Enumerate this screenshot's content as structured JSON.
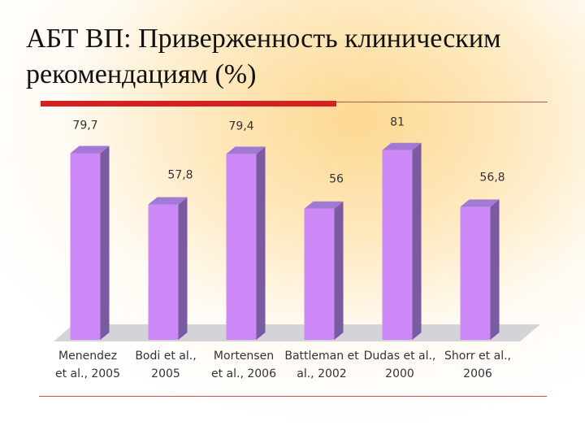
{
  "slide": {
    "title": "АБТ ВП: Приверженность клиническим рекомендациям (%)"
  },
  "colors": {
    "bar_front": "#cc88f6",
    "bar_side": "#7b5aa2",
    "bar_top": "#a27ad6",
    "floor": "#d3d3d8",
    "accent_red": "#d42020"
  },
  "chart_data": {
    "type": "bar",
    "style": "3d",
    "categories": [
      [
        "Menendez",
        "et al., 2005"
      ],
      [
        "Bodi et al.,",
        "2005"
      ],
      [
        "Mortensen",
        "et al., 2006"
      ],
      [
        "Battleman et",
        "al., 2002"
      ],
      [
        "Dudas et al.,",
        "2000"
      ],
      [
        "Shorr et al.,",
        "2006"
      ]
    ],
    "values": [
      79.7,
      57.8,
      79.4,
      56,
      81,
      56.8
    ],
    "value_labels": [
      "79,7",
      "57,8",
      "79,4",
      "56",
      "81",
      "56,8"
    ],
    "ylim": [
      0,
      100
    ],
    "grid": false,
    "legend": "none"
  }
}
